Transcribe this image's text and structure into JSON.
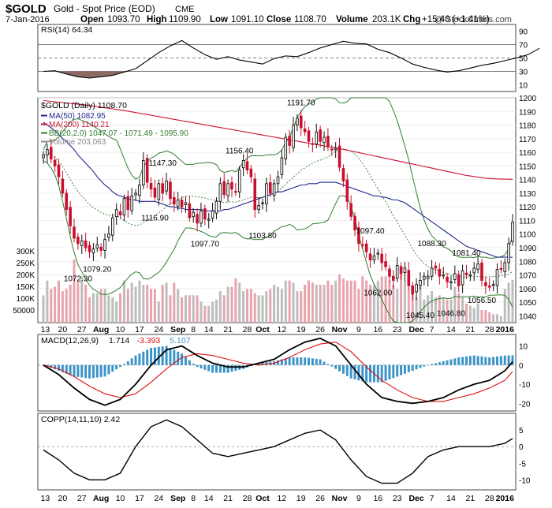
{
  "header": {
    "symbol": "$GOLD",
    "name": "Gold - Spot Price (EOD)",
    "exchange": "CME",
    "date": "7-Jan-2016",
    "open_label": "Open",
    "open": "1093.70",
    "high_label": "High",
    "high": "1109.90",
    "low_label": "Low",
    "low": "1091.10",
    "close_label": "Close",
    "close": "1108.70",
    "volume_label": "Volume",
    "volume": "203.1K",
    "chg_label": "Chg",
    "chg": "+15.40 (+1.41%)",
    "watermark": "@ StockCharts.com"
  },
  "colors": {
    "up": "#101010",
    "down": "#c8102e",
    "ma50": "#1f2a8c",
    "ma200": "#cc1133",
    "bb": "#2f7d2f",
    "bb_mid": "#2f7d2f",
    "vol_up": "#bdbdbd",
    "vol_down": "#e8a4ad",
    "macd": "#000000",
    "signal": "#dd1111",
    "hist": "#3d94c8",
    "rsi": "#000000",
    "rsi_fill": "#8c6a63"
  },
  "chart_data": [
    {
      "type": "line",
      "panel": "RSI",
      "title": "RSI(14) 64.34",
      "ylim": [
        0,
        100
      ],
      "ticks": [
        "90",
        "70",
        "50",
        "30",
        "10"
      ],
      "x": [
        0,
        3,
        6,
        9,
        12,
        15,
        18,
        21,
        24,
        27,
        30,
        33,
        36,
        39,
        42,
        45,
        48,
        51,
        54,
        57,
        60,
        63,
        66,
        69,
        72,
        75,
        78,
        81,
        84,
        87,
        90,
        93,
        96,
        99,
        102,
        105,
        108,
        111,
        114,
        117,
        120,
        123,
        126,
        129
      ],
      "values": [
        30,
        31,
        26,
        22,
        20,
        22,
        24,
        29,
        34,
        46,
        58,
        68,
        76,
        65,
        55,
        48,
        52,
        47,
        44,
        41,
        49,
        53,
        52,
        58,
        65,
        70,
        75,
        72,
        71,
        63,
        58,
        50,
        41,
        36,
        32,
        29,
        31,
        35,
        39,
        42,
        46,
        50,
        55,
        64.34
      ]
    },
    {
      "type": "candlestick",
      "panel": "Price",
      "title": "$GOLD (Daily) 1108.70",
      "legend": [
        {
          "label": "MA(50) 1082.95",
          "color": "#1f2a8c"
        },
        {
          "label": "MA(200) 1140.21",
          "color": "#cc1133"
        },
        {
          "label": "BB(20,2.0) 1047.07 - 1071.49 - 1095.90",
          "color": "#2f7d2f"
        },
        {
          "label": "Volume 203,063",
          "color": "#888888"
        }
      ],
      "ylim": [
        1035,
        1200
      ],
      "price_ticks": [
        "1200",
        "1190",
        "1180",
        "1170",
        "1160",
        "1150",
        "1140",
        "1130",
        "1120",
        "1110",
        "1100",
        "1090",
        "1080",
        "1070",
        "1060",
        "1050",
        "1040"
      ],
      "volume_ticks": [
        "300K",
        "250K",
        "200K",
        "150K",
        "100K",
        "50000"
      ],
      "x_labels": [
        {
          "text": "13",
          "x": 0.5,
          "bold": false
        },
        {
          "text": "20",
          "x": 5,
          "bold": false
        },
        {
          "text": "27",
          "x": 10,
          "bold": false
        },
        {
          "text": "Aug",
          "x": 15,
          "bold": true
        },
        {
          "text": "10",
          "x": 20,
          "bold": false
        },
        {
          "text": "17",
          "x": 25,
          "bold": false
        },
        {
          "text": "24",
          "x": 30,
          "bold": false
        },
        {
          "text": "Sep",
          "x": 35,
          "bold": true
        },
        {
          "text": "8",
          "x": 39,
          "bold": false
        },
        {
          "text": "14",
          "x": 43,
          "bold": false
        },
        {
          "text": "21",
          "x": 48,
          "bold": false
        },
        {
          "text": "28",
          "x": 53,
          "bold": false
        },
        {
          "text": "Oct",
          "x": 57,
          "bold": true
        },
        {
          "text": "12",
          "x": 62,
          "bold": false
        },
        {
          "text": "19",
          "x": 67,
          "bold": false
        },
        {
          "text": "26",
          "x": 72,
          "bold": false
        },
        {
          "text": "Nov",
          "x": 77,
          "bold": true
        },
        {
          "text": "9",
          "x": 82,
          "bold": false
        },
        {
          "text": "16",
          "x": 87,
          "bold": false
        },
        {
          "text": "23",
          "x": 92,
          "bold": false
        },
        {
          "text": "Dec",
          "x": 97,
          "bold": true
        },
        {
          "text": "7",
          "x": 101,
          "bold": false
        },
        {
          "text": "14",
          "x": 106,
          "bold": false
        },
        {
          "text": "21",
          "x": 111,
          "bold": false
        },
        {
          "text": "28",
          "x": 116,
          "bold": false
        },
        {
          "text": "2016",
          "x": 120,
          "bold": true
        }
      ],
      "annotations": [
        {
          "text": "1191.70",
          "x": 67,
          "y": 1191.7,
          "pos": "above"
        },
        {
          "text": "1156.40",
          "x": 51,
          "y": 1156.4,
          "pos": "above"
        },
        {
          "text": "1147.30",
          "x": 31,
          "y": 1147.3,
          "pos": "above"
        },
        {
          "text": "1116.90",
          "x": 29,
          "y": 1116.9,
          "pos": "below"
        },
        {
          "text": "1097.70",
          "x": 42,
          "y": 1097.7,
          "pos": "below"
        },
        {
          "text": "1103.80",
          "x": 57,
          "y": 1103.8,
          "pos": "below"
        },
        {
          "text": "1097.40",
          "x": 85,
          "y": 1097.4,
          "pos": "above"
        },
        {
          "text": "1088.30",
          "x": 101,
          "y": 1088.3,
          "pos": "above"
        },
        {
          "text": "1081.40",
          "x": 110,
          "y": 1081.4,
          "pos": "above"
        },
        {
          "text": "1079.20",
          "x": 14,
          "y": 1079.2,
          "pos": "below"
        },
        {
          "text": "1072.30",
          "x": 9,
          "y": 1072.3,
          "pos": "below"
        },
        {
          "text": "1062.00",
          "x": 87,
          "y": 1062.0,
          "pos": "below"
        },
        {
          "text": "1045.40",
          "x": 98,
          "y": 1045.4,
          "pos": "below"
        },
        {
          "text": "1046.80",
          "x": 106,
          "y": 1046.8,
          "pos": "below"
        },
        {
          "text": "1056.50",
          "x": 114,
          "y": 1056.5,
          "pos": "below"
        }
      ],
      "x": [
        0,
        1,
        2,
        3,
        4,
        5,
        6,
        7,
        8,
        9,
        10,
        11,
        12,
        13,
        14,
        15,
        16,
        17,
        18,
        19,
        20,
        21,
        22,
        23,
        24,
        25,
        26,
        27,
        28,
        29,
        30,
        31,
        32,
        33,
        34,
        35,
        36,
        37,
        38,
        39,
        40,
        41,
        42,
        43,
        44,
        45,
        46,
        47,
        48,
        49,
        50,
        51,
        52,
        53,
        54,
        55,
        56,
        57,
        58,
        59,
        60,
        61,
        62,
        63,
        64,
        65,
        66,
        67,
        68,
        69,
        70,
        71,
        72,
        73,
        74,
        75,
        76,
        77,
        78,
        79,
        80,
        81,
        82,
        83,
        84,
        85,
        86,
        87,
        88,
        89,
        90,
        91,
        92,
        93,
        94,
        95,
        96,
        97,
        98,
        99,
        100,
        101,
        102,
        103,
        104,
        105,
        106,
        107,
        108,
        109,
        110,
        111,
        112,
        113,
        114,
        115,
        116,
        117,
        118,
        119,
        120,
        121,
        122
      ],
      "close": [
        1158,
        1162,
        1155,
        1150,
        1142,
        1130,
        1118,
        1106,
        1097,
        1093,
        1095,
        1090,
        1087,
        1089,
        1092,
        1088,
        1096,
        1100,
        1112,
        1118,
        1114,
        1126,
        1118,
        1128,
        1130,
        1136,
        1154,
        1138,
        1133,
        1127,
        1137,
        1130,
        1139,
        1126,
        1122,
        1125,
        1120,
        1123,
        1112,
        1116,
        1108,
        1117,
        1111,
        1111,
        1117,
        1124,
        1137,
        1129,
        1137,
        1133,
        1131,
        1147,
        1154,
        1147,
        1142,
        1118,
        1121,
        1123,
        1137,
        1130,
        1137,
        1142,
        1156,
        1171,
        1165,
        1180,
        1185,
        1178,
        1175,
        1168,
        1166,
        1175,
        1168,
        1171,
        1164,
        1162,
        1163,
        1149,
        1139,
        1124,
        1113,
        1103,
        1093,
        1092,
        1087,
        1081,
        1084,
        1086,
        1079,
        1076,
        1069,
        1066,
        1077,
        1071,
        1075,
        1062,
        1056,
        1063,
        1066,
        1069,
        1069,
        1075,
        1075,
        1069,
        1070,
        1065,
        1065,
        1071,
        1062,
        1073,
        1070,
        1070,
        1075,
        1078,
        1066,
        1062,
        1061,
        1063,
        1074,
        1074,
        1079,
        1093,
        1108.7
      ],
      "volume": [
        130,
        200,
        160,
        170,
        200,
        150,
        160,
        180,
        300,
        200,
        220,
        180,
        120,
        140,
        140,
        160,
        160,
        130,
        120,
        100,
        140,
        200,
        160,
        190,
        170,
        200,
        180,
        180,
        160,
        160,
        100,
        180,
        190,
        130,
        190,
        160,
        120,
        130,
        130,
        130,
        130,
        100,
        80,
        80,
        100,
        110,
        150,
        130,
        170,
        170,
        210,
        190,
        150,
        160,
        160,
        140,
        130,
        130,
        150,
        160,
        180,
        170,
        160,
        200,
        200,
        190,
        150,
        150,
        180,
        200,
        190,
        180,
        180,
        180,
        200,
        180,
        200,
        230,
        210,
        200,
        200,
        200,
        160,
        220,
        200,
        180,
        180,
        200,
        220,
        220,
        200,
        180,
        160,
        230,
        200,
        160,
        140,
        120,
        170,
        110,
        130,
        150,
        120,
        130,
        120,
        110,
        110,
        170,
        140,
        120,
        90,
        80,
        70,
        90,
        60,
        60,
        50,
        40,
        40,
        30,
        160,
        190,
        203
      ],
      "ma50": [
        1182,
        1180,
        1178,
        1176,
        1173,
        1170,
        1168,
        1165,
        1162,
        1158,
        1155,
        1152,
        1149,
        1146,
        1142,
        1139,
        1136,
        1134,
        1131,
        1129,
        1128,
        1127,
        1126,
        1125,
        1125,
        1124,
        1124,
        1124,
        1124,
        1124,
        1123,
        1122,
        1121,
        1120,
        1120,
        1119,
        1119,
        1118,
        1118,
        1118,
        1118,
        1118,
        1117,
        1117,
        1117,
        1117,
        1117,
        1118,
        1118,
        1119,
        1120,
        1121,
        1122,
        1123,
        1124,
        1125,
        1126,
        1127,
        1128,
        1129,
        1130,
        1131,
        1131,
        1132,
        1133,
        1134,
        1135,
        1136,
        1136,
        1137,
        1137,
        1137,
        1138,
        1138,
        1138,
        1138,
        1138,
        1137,
        1136,
        1135,
        1134,
        1133,
        1132,
        1131,
        1130,
        1129,
        1128,
        1128,
        1127,
        1127,
        1126,
        1125,
        1125,
        1124,
        1123,
        1121,
        1119,
        1117,
        1115,
        1113,
        1111,
        1109,
        1107,
        1105,
        1103,
        1101,
        1099,
        1097,
        1095,
        1093,
        1091,
        1090,
        1089,
        1088,
        1087,
        1086,
        1085,
        1084,
        1083,
        1083,
        1083,
        1083,
        1082.95
      ],
      "ma200": [
        1198,
        1197.7,
        1197.4,
        1197.1,
        1196.8,
        1196.5,
        1196.2,
        1195.9,
        1195.6,
        1195.3,
        1195,
        1194.7,
        1194.3,
        1193.9,
        1193.5,
        1193.1,
        1192.7,
        1192.3,
        1191.9,
        1191.5,
        1191.1,
        1190.7,
        1190.2,
        1189.7,
        1189.2,
        1188.7,
        1188.2,
        1187.7,
        1187.2,
        1186.7,
        1186.2,
        1185.7,
        1185.2,
        1184.7,
        1184.2,
        1183.7,
        1183.2,
        1182.7,
        1182.2,
        1181.7,
        1181.2,
        1180.7,
        1180.2,
        1179.7,
        1179.2,
        1178.7,
        1178.2,
        1177.7,
        1177.2,
        1176.7,
        1176.2,
        1175.7,
        1175.2,
        1174.7,
        1174.2,
        1173.7,
        1173.2,
        1172.7,
        1172.2,
        1171.7,
        1171.2,
        1170.7,
        1170.2,
        1169.7,
        1169.2,
        1168.7,
        1168.2,
        1167.7,
        1167.2,
        1166.7,
        1166.2,
        1165.7,
        1165.2,
        1164.7,
        1164.2,
        1163.7,
        1163.2,
        1162.7,
        1162.2,
        1161.6,
        1161,
        1160.4,
        1159.8,
        1159.2,
        1158.6,
        1158,
        1157.4,
        1156.8,
        1156.2,
        1155.6,
        1155,
        1154.4,
        1153.8,
        1153.2,
        1152.6,
        1152,
        1151.4,
        1150.8,
        1150.2,
        1149.6,
        1149,
        1148.4,
        1147.8,
        1147.2,
        1146.6,
        1146,
        1145.4,
        1144.8,
        1144.2,
        1143.6,
        1143,
        1142.6,
        1142.2,
        1141.8,
        1141.4,
        1141,
        1140.8,
        1140.6,
        1140.5,
        1140.4,
        1140.3,
        1140.25,
        1140.21
      ]
    },
    {
      "type": "line",
      "panel": "MACD",
      "title": "MACD(12,26,9)",
      "value_labels": [
        {
          "text": "1.714",
          "color": "#000000"
        },
        {
          "text": "-3.393",
          "color": "#dd1111"
        },
        {
          "text": "5.107",
          "color": "#3d94c8"
        }
      ],
      "ylim": [
        -24,
        16
      ],
      "ticks": [
        "10",
        "0",
        "-10",
        "-20"
      ],
      "x": [
        0,
        4,
        8,
        12,
        16,
        20,
        24,
        28,
        32,
        36,
        40,
        44,
        48,
        52,
        56,
        60,
        64,
        68,
        72,
        76,
        80,
        84,
        88,
        92,
        96,
        100,
        104,
        108,
        112,
        116,
        120,
        122
      ],
      "macd": [
        0,
        -5,
        -12,
        -18,
        -21,
        -18,
        -10,
        0,
        8,
        10,
        5,
        1,
        -1,
        -1,
        1,
        3,
        8,
        12,
        14,
        10,
        0,
        -10,
        -17,
        -19,
        -20,
        -19,
        -17,
        -13,
        -10,
        -8,
        -3,
        1.714
      ],
      "signal": [
        0,
        -2,
        -6,
        -11,
        -15,
        -17,
        -15,
        -9,
        -2,
        4,
        6,
        5,
        3,
        1,
        0,
        1,
        4,
        8,
        11,
        12,
        7,
        -1,
        -8,
        -13,
        -17,
        -19,
        -19,
        -17,
        -15,
        -12,
        -8,
        -3.393
      ]
    },
    {
      "type": "line",
      "panel": "COPP",
      "title": "COPP(14,11,10) 2.42",
      "ylim": [
        -13,
        10
      ],
      "ticks": [
        "5",
        "0",
        "-5",
        "-10"
      ],
      "x": [
        0,
        4,
        8,
        12,
        16,
        20,
        24,
        28,
        32,
        36,
        40,
        44,
        48,
        52,
        56,
        60,
        64,
        68,
        72,
        76,
        80,
        84,
        88,
        92,
        96,
        100,
        104,
        108,
        112,
        116,
        120,
        122
      ],
      "values": [
        -1,
        -4,
        -8,
        -10,
        -10,
        -8,
        0,
        6,
        8,
        6,
        2,
        -2,
        -3,
        -2,
        -1,
        0,
        2,
        4,
        5,
        2,
        -4,
        -9,
        -11,
        -11,
        -8,
        -3,
        -1,
        0,
        0,
        0,
        1,
        2.42
      ]
    }
  ]
}
